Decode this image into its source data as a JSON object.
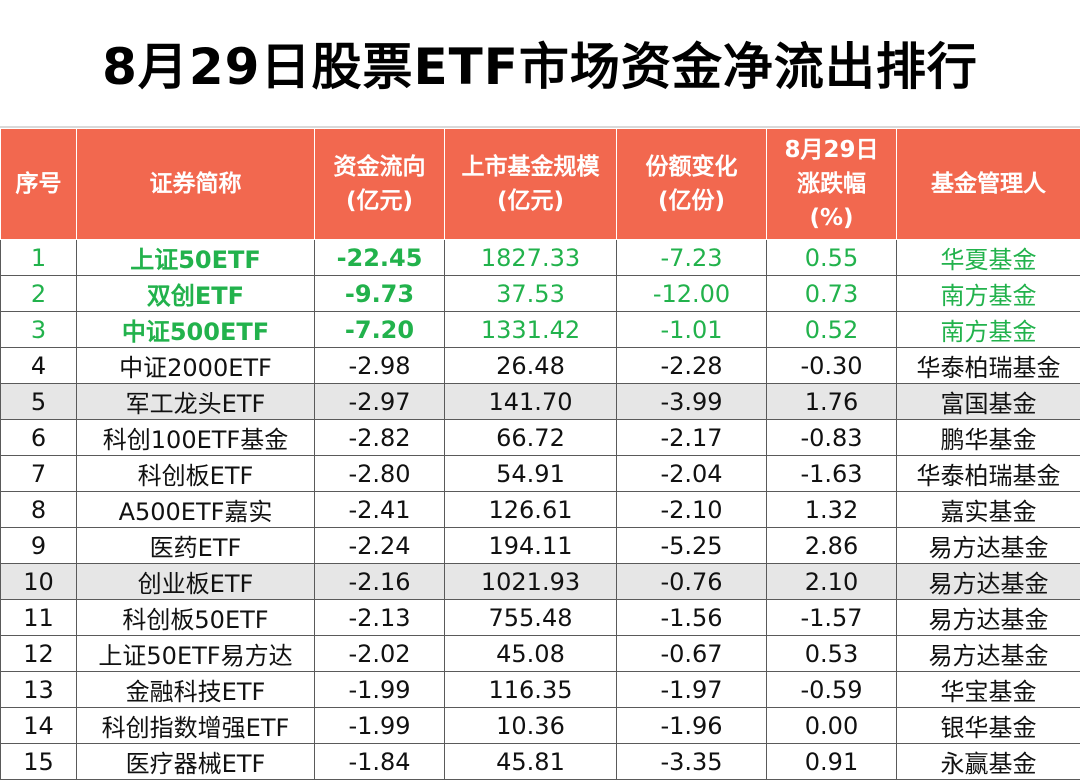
{
  "title": "8月29日股票ETF市场资金净流出排行",
  "header": {
    "rank": [
      "序号"
    ],
    "name": [
      "证券简称"
    ],
    "flow": [
      "资金流向",
      "(亿元)"
    ],
    "size": [
      "上市基金规模",
      "(亿元)"
    ],
    "share": [
      "份额变化",
      "(亿份)"
    ],
    "change": [
      "8月29日",
      "涨跌幅",
      "(%)"
    ],
    "manager": [
      "基金管理人"
    ]
  },
  "colors": {
    "header_bg": "#f2684f",
    "highlight_text": "#22b24c",
    "shaded_row": "#e6e6e6"
  },
  "rows": [
    {
      "rank": "1",
      "name": "上证50ETF",
      "flow": "-22.45",
      "size": "1827.33",
      "share": "-7.23",
      "change": "0.55",
      "manager": "华夏基金"
    },
    {
      "rank": "2",
      "name": "双创ETF",
      "flow": "-9.73",
      "size": "37.53",
      "share": "-12.00",
      "change": "0.73",
      "manager": "南方基金"
    },
    {
      "rank": "3",
      "name": "中证500ETF",
      "flow": "-7.20",
      "size": "1331.42",
      "share": "-1.01",
      "change": "0.52",
      "manager": "南方基金"
    },
    {
      "rank": "4",
      "name": "中证2000ETF",
      "flow": "-2.98",
      "size": "26.48",
      "share": "-2.28",
      "change": "-0.30",
      "manager": "华泰柏瑞基金"
    },
    {
      "rank": "5",
      "name": "军工龙头ETF",
      "flow": "-2.97",
      "size": "141.70",
      "share": "-3.99",
      "change": "1.76",
      "manager": "富国基金"
    },
    {
      "rank": "6",
      "name": "科创100ETF基金",
      "flow": "-2.82",
      "size": "66.72",
      "share": "-2.17",
      "change": "-0.83",
      "manager": "鹏华基金"
    },
    {
      "rank": "7",
      "name": "科创板ETF",
      "flow": "-2.80",
      "size": "54.91",
      "share": "-2.04",
      "change": "-1.63",
      "manager": "华泰柏瑞基金"
    },
    {
      "rank": "8",
      "name": "A500ETF嘉实",
      "flow": "-2.41",
      "size": "126.61",
      "share": "-2.10",
      "change": "1.32",
      "manager": "嘉实基金"
    },
    {
      "rank": "9",
      "name": "医药ETF",
      "flow": "-2.24",
      "size": "194.11",
      "share": "-5.25",
      "change": "2.86",
      "manager": "易方达基金"
    },
    {
      "rank": "10",
      "name": "创业板ETF",
      "flow": "-2.16",
      "size": "1021.93",
      "share": "-0.76",
      "change": "2.10",
      "manager": "易方达基金"
    },
    {
      "rank": "11",
      "name": "科创板50ETF",
      "flow": "-2.13",
      "size": "755.48",
      "share": "-1.56",
      "change": "-1.57",
      "manager": "易方达基金"
    },
    {
      "rank": "12",
      "name": "上证50ETF易方达",
      "flow": "-2.02",
      "size": "45.08",
      "share": "-0.67",
      "change": "0.53",
      "manager": "易方达基金"
    },
    {
      "rank": "13",
      "name": "金融科技ETF",
      "flow": "-1.99",
      "size": "116.35",
      "share": "-1.97",
      "change": "-0.59",
      "manager": "华宝基金"
    },
    {
      "rank": "14",
      "name": "科创指数增强ETF",
      "flow": "-1.99",
      "size": "10.36",
      "share": "-1.96",
      "change": "0.00",
      "manager": "银华基金"
    },
    {
      "rank": "15",
      "name": "医疗器械ETF",
      "flow": "-1.84",
      "size": "45.81",
      "share": "-3.35",
      "change": "0.91",
      "manager": "永赢基金"
    }
  ]
}
